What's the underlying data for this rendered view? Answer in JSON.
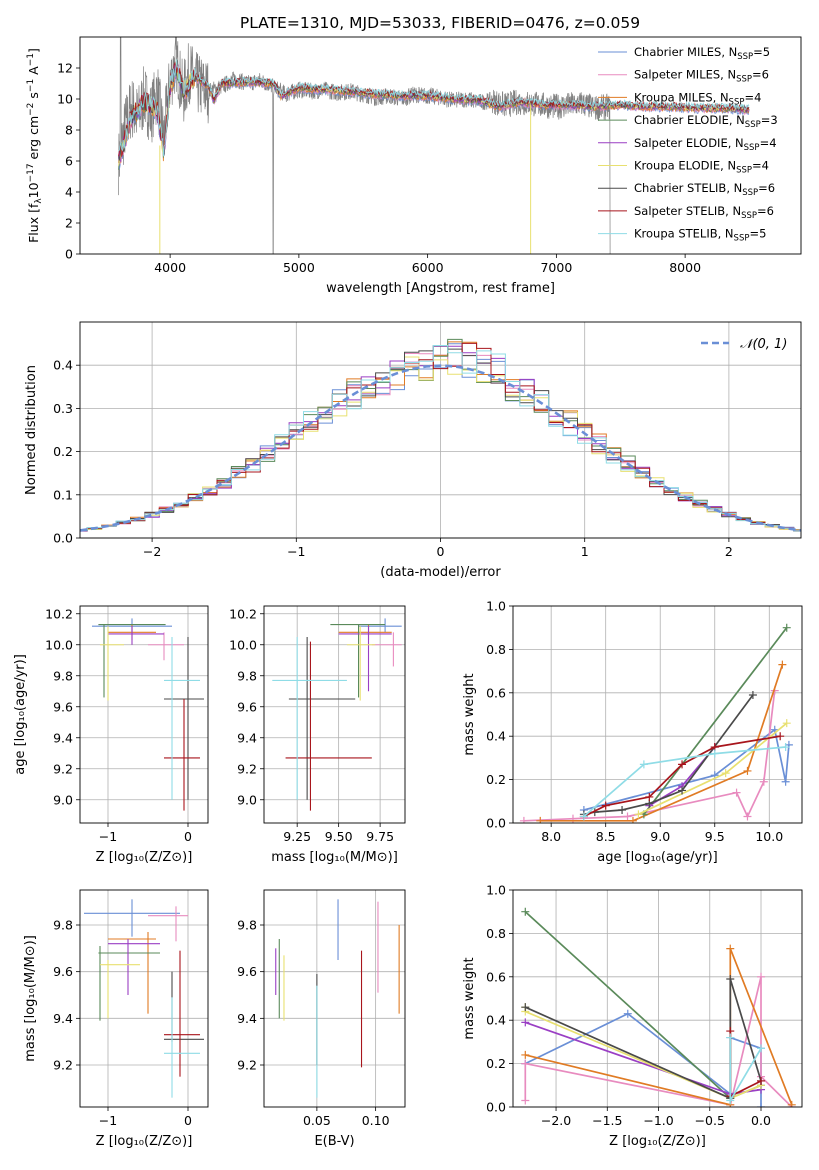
{
  "figure_title": "PLATE=1310, MJD=53033, FIBERID=0476, z=0.059",
  "colors": {
    "grid": "#b0b0b0",
    "data": "#808080",
    "series": [
      "#6a8fd6",
      "#e88bbf",
      "#e07b24",
      "#5a8a5a",
      "#9a3fc4",
      "#e8e070",
      "#4a4a4a",
      "#a8151c",
      "#8fdce6"
    ],
    "normal": "#6a8fd6"
  },
  "chart_data": [
    {
      "id": "spectrum",
      "type": "line",
      "xlabel": "wavelength [Angstrom, rest frame]",
      "ylabel": "Flux [f$_\\lambda$10$^{-17}$ erg cm$^{-2}$ s$^{-1}$ A$^{-1}$]",
      "xlim": [
        3300,
        8900
      ],
      "ylim": [
        0,
        14
      ],
      "xticks": [
        4000,
        5000,
        6000,
        7000,
        8000
      ],
      "yticks": [
        0,
        2,
        4,
        6,
        8,
        10,
        12
      ],
      "grid": false,
      "legend_position": "top-right",
      "legend": [
        {
          "main": "Chabrier MILES, N",
          "sub": "SSP",
          "tail": "=5"
        },
        {
          "main": "Salpeter MILES, N",
          "sub": "SSP",
          "tail": "=6"
        },
        {
          "main": "Kroupa MILES, N",
          "sub": "SSP",
          "tail": "=4"
        },
        {
          "main": "Chabrier ELODIE, N",
          "sub": "SSP",
          "tail": "=3"
        },
        {
          "main": "Salpeter ELODIE, N",
          "sub": "SSP",
          "tail": "=4"
        },
        {
          "main": "Kroupa ELODIE, N",
          "sub": "SSP",
          "tail": "=4"
        },
        {
          "main": "Chabrier STELIB, N",
          "sub": "SSP",
          "tail": "=6"
        },
        {
          "main": "Salpeter STELIB, N",
          "sub": "SSP",
          "tail": "=6"
        },
        {
          "main": "Kroupa STELIB, N",
          "sub": "SSP",
          "tail": "=5"
        }
      ],
      "data_x": [
        3600,
        3650,
        3700,
        3750,
        3800,
        3850,
        3900,
        3950,
        4000,
        4050,
        4100,
        4150,
        4200,
        4300,
        4400,
        4500,
        4600,
        4700,
        4800,
        4900,
        5000,
        5100,
        5200,
        5300,
        5400,
        5500,
        5600,
        5700,
        5800,
        5900,
        6000,
        6100,
        6200,
        6300,
        6400,
        6500,
        6600,
        6700,
        6800,
        6900,
        7000,
        7100,
        7200,
        7300,
        7400
      ],
      "data_y": [
        5.9,
        8.2,
        9.5,
        8.8,
        10.2,
        9.0,
        10.5,
        7.5,
        11.2,
        12.5,
        10.2,
        11.8,
        11.0,
        10.5,
        10.8,
        11.3,
        11.0,
        11.2,
        10.8,
        10.3,
        10.6,
        10.5,
        10.6,
        10.4,
        10.5,
        10.3,
        10.1,
        10.2,
        10.0,
        10.3,
        10.2,
        10.1,
        9.9,
        10.0,
        9.8,
        9.9,
        9.6,
        9.8,
        9.7,
        9.6,
        9.5,
        9.6,
        9.7,
        9.4,
        9.5
      ],
      "model_x": [
        3600,
        3700,
        3800,
        3900,
        3950,
        4000,
        4050,
        4100,
        4200,
        4300,
        4340,
        4400,
        4600,
        4800,
        4861,
        5000,
        5200,
        5400,
        5600,
        5800,
        6000,
        6200,
        6400,
        6563,
        6700,
        6900,
        7100,
        7300,
        7500,
        7700,
        7900,
        8100,
        8300,
        8500
      ],
      "model_y": [
        6.0,
        8.8,
        9.8,
        9.3,
        6.5,
        10.8,
        12.0,
        10.5,
        11.4,
        10.8,
        9.9,
        11.0,
        11.1,
        11.0,
        10.2,
        10.7,
        10.6,
        10.5,
        10.3,
        10.2,
        10.2,
        10.0,
        9.9,
        9.5,
        9.8,
        9.6,
        9.6,
        9.5,
        9.6,
        9.5,
        9.5,
        9.4,
        9.4,
        9.3
      ]
    },
    {
      "id": "residuals",
      "type": "histogram",
      "xlabel": "(data-model)/error",
      "ylabel": "Normed distribution",
      "xlim": [
        -2.5,
        2.5
      ],
      "ylim": [
        0,
        0.5
      ],
      "xticks": [
        -2,
        -1,
        0,
        1,
        2
      ],
      "xticklabels": [
        "−2",
        "−1",
        "0",
        "1",
        "2"
      ],
      "yticks": [
        0.0,
        0.1,
        0.2,
        0.3,
        0.4
      ],
      "yticklabels": [
        "0.0",
        "0.1",
        "0.2",
        "0.3",
        "0.4"
      ],
      "grid": true,
      "legend_position": "top-right",
      "legend_label": "𝒩(0, 1)",
      "bin_width": 0.1
    },
    {
      "id": "age-vs-Z",
      "type": "errorbar",
      "xlabel": "Z [log₁₀(Z/Z⊙)]",
      "ylabel": "age  [log₁₀(age/yr)]",
      "xlim": [
        -1.35,
        0.25
      ],
      "ylim": [
        8.85,
        10.25
      ],
      "xticks": [
        -1,
        0
      ],
      "xticklabels": [
        "−1",
        "0"
      ],
      "yticks": [
        9.0,
        9.2,
        9.4,
        9.6,
        9.8,
        10.0,
        10.2
      ],
      "yticklabels": [
        "9.0",
        "9.2",
        "9.4",
        "9.6",
        "9.8",
        "10.0",
        "10.2"
      ],
      "grid": true,
      "points": [
        {
          "x": -0.7,
          "y": 10.12,
          "xe": [
            -1.2,
            -0.2
          ],
          "ye": [
            10.08,
            10.17
          ]
        },
        {
          "x": -0.3,
          "y": 10.0,
          "xe": [
            -0.5,
            -0.05
          ],
          "ye": [
            9.9,
            10.08
          ]
        },
        {
          "x": -0.7,
          "y": 10.08,
          "xe": [
            -1.0,
            -0.4
          ],
          "ye": [
            10.03,
            10.13
          ]
        },
        {
          "x": -1.05,
          "y": 10.13,
          "xe": [
            -1.12,
            -0.28
          ],
          "ye": [
            9.66,
            10.13
          ]
        },
        {
          "x": -0.7,
          "y": 10.07,
          "xe": [
            -1.0,
            -0.3
          ],
          "ye": [
            10.0,
            10.12
          ]
        },
        {
          "x": -1.0,
          "y": 10.0,
          "xe": [
            -1.1,
            -0.8
          ],
          "ye": [
            9.64,
            10.12
          ]
        },
        {
          "x": 0.0,
          "y": 9.65,
          "xe": [
            -0.3,
            0.2
          ],
          "ye": [
            9.0,
            10.05
          ]
        },
        {
          "x": -0.05,
          "y": 9.27,
          "xe": [
            -0.3,
            0.15
          ],
          "ye": [
            8.93,
            9.65
          ]
        },
        {
          "x": -0.2,
          "y": 9.77,
          "xe": [
            -0.3,
            0.15
          ],
          "ye": [
            9.0,
            10.05
          ]
        }
      ]
    },
    {
      "id": "age-vs-mass",
      "type": "errorbar",
      "xlabel": "mass [log₁₀(M/M⊙)]",
      "ylabel": "",
      "xlim": [
        9.05,
        9.9
      ],
      "ylim": [
        8.85,
        10.25
      ],
      "xticks": [
        9.25,
        9.5,
        9.75
      ],
      "xticklabels": [
        "9.25",
        "9.50",
        "9.75"
      ],
      "yticks": [
        9.0,
        9.2,
        9.4,
        9.6,
        9.8,
        10.0,
        10.2
      ],
      "yticklabels": [
        "9.0",
        "9.2",
        "9.4",
        "9.6",
        "9.8",
        "10.0",
        "10.2"
      ],
      "grid": true,
      "points": [
        {
          "x": 9.78,
          "y": 10.12,
          "xe": [
            9.62,
            9.88
          ],
          "ye": [
            10.08,
            10.17
          ]
        },
        {
          "x": 9.83,
          "y": 10.0,
          "xe": [
            9.7,
            9.88
          ],
          "ye": [
            9.86,
            10.08
          ]
        },
        {
          "x": 9.68,
          "y": 10.08,
          "xe": [
            9.5,
            9.82
          ],
          "ye": [
            10.03,
            10.13
          ]
        },
        {
          "x": 9.62,
          "y": 10.13,
          "xe": [
            9.45,
            9.78
          ],
          "ye": [
            9.66,
            10.13
          ]
        },
        {
          "x": 9.68,
          "y": 10.07,
          "xe": [
            9.5,
            9.82
          ],
          "ye": [
            9.7,
            10.12
          ]
        },
        {
          "x": 9.63,
          "y": 10.0,
          "xe": [
            9.55,
            9.72
          ],
          "ye": [
            9.64,
            10.12
          ]
        },
        {
          "x": 9.31,
          "y": 9.65,
          "xe": [
            9.2,
            9.6
          ],
          "ye": [
            9.0,
            10.05
          ]
        },
        {
          "x": 9.33,
          "y": 9.27,
          "xe": [
            9.18,
            9.7
          ],
          "ye": [
            8.93,
            10.02
          ]
        },
        {
          "x": 9.25,
          "y": 9.77,
          "xe": [
            9.1,
            9.55
          ],
          "ye": [
            9.0,
            10.05
          ]
        }
      ]
    },
    {
      "id": "weight-vs-age",
      "type": "line",
      "xlabel": "age  [log₁₀(age/yr)]",
      "ylabel": "mass weight",
      "xlim": [
        7.65,
        10.3
      ],
      "ylim": [
        0,
        1
      ],
      "xticks": [
        8.0,
        8.5,
        9.0,
        9.5,
        10.0
      ],
      "xticklabels": [
        "8.0",
        "8.5",
        "9.0",
        "9.5",
        "10.0"
      ],
      "yticks": [
        0.0,
        0.2,
        0.4,
        0.6,
        0.8,
        1.0
      ],
      "yticklabels": [
        "0.0",
        "0.2",
        "0.4",
        "0.6",
        "0.8",
        "1.0"
      ],
      "grid": true,
      "series": [
        {
          "x": [
            8.3,
            9.5,
            10.05,
            10.15,
            10.18
          ],
          "y": [
            0.06,
            0.22,
            0.43,
            0.19,
            0.36
          ]
        },
        {
          "x": [
            7.75,
            8.2,
            8.7,
            9.7,
            9.8,
            9.95,
            10.05
          ],
          "y": [
            0.01,
            0.02,
            0.03,
            0.14,
            0.03,
            0.19,
            0.61
          ]
        },
        {
          "x": [
            7.9,
            8.75,
            9.8,
            10.12
          ],
          "y": [
            0.01,
            0.01,
            0.24,
            0.73
          ]
        },
        {
          "x": [
            8.85,
            10.16
          ],
          "y": [
            0.04,
            0.9
          ]
        },
        {
          "x": [
            8.9,
            9.2,
            9.5
          ],
          "y": [
            0.08,
            0.17,
            0.35
          ]
        },
        {
          "x": [
            8.8,
            9.6,
            10.16
          ],
          "y": [
            0.04,
            0.23,
            0.46
          ]
        },
        {
          "x": [
            8.3,
            8.4,
            8.65,
            8.9,
            9.2,
            9.85
          ],
          "y": [
            0.04,
            0.05,
            0.06,
            0.09,
            0.15,
            0.59
          ]
        },
        {
          "x": [
            8.3,
            8.5,
            8.9,
            9.2,
            9.5,
            10.1
          ],
          "y": [
            0.03,
            0.08,
            0.12,
            0.27,
            0.35,
            0.4
          ]
        },
        {
          "x": [
            8.3,
            8.85,
            9.5,
            10.15
          ],
          "y": [
            0.03,
            0.27,
            0.32,
            0.35
          ]
        }
      ]
    },
    {
      "id": "mass-vs-Z",
      "type": "errorbar",
      "xlabel": "Z [log₁₀(Z/Z⊙)]",
      "ylabel": "mass [log₁₀(M/M⊙)]",
      "xlim": [
        -1.35,
        0.25
      ],
      "ylim": [
        9.02,
        9.95
      ],
      "xticks": [
        -1,
        0
      ],
      "xticklabels": [
        "−1",
        "0"
      ],
      "yticks": [
        9.2,
        9.4,
        9.6,
        9.8
      ],
      "yticklabels": [
        "9.2",
        "9.4",
        "9.6",
        "9.8"
      ],
      "grid": true,
      "points": [
        {
          "x": -0.7,
          "y": 9.85,
          "xe": [
            -1.3,
            -0.1
          ],
          "ye": [
            9.75,
            9.91
          ]
        },
        {
          "x": -0.15,
          "y": 9.84,
          "xe": [
            -0.5,
            0.0
          ],
          "ye": [
            9.73,
            9.88
          ]
        },
        {
          "x": -0.5,
          "y": 9.74,
          "xe": [
            -1.0,
            -0.4
          ],
          "ye": [
            9.42,
            9.77
          ]
        },
        {
          "x": -1.1,
          "y": 9.68,
          "xe": [
            -1.12,
            -0.35
          ],
          "ye": [
            9.39,
            9.71
          ]
        },
        {
          "x": -0.75,
          "y": 9.72,
          "xe": [
            -1.0,
            -0.35
          ],
          "ye": [
            9.5,
            9.74
          ]
        },
        {
          "x": -1.0,
          "y": 9.63,
          "xe": [
            -1.1,
            -0.6
          ],
          "ye": [
            9.4,
            9.65
          ]
        },
        {
          "x": -0.2,
          "y": 9.31,
          "xe": [
            -0.3,
            0.2
          ],
          "ye": [
            9.3,
            9.6
          ]
        },
        {
          "x": -0.1,
          "y": 9.33,
          "xe": [
            -0.3,
            0.15
          ],
          "ye": [
            9.15,
            9.69
          ]
        },
        {
          "x": -0.2,
          "y": 9.25,
          "xe": [
            -0.3,
            0.15
          ],
          "ye": [
            9.06,
            9.49
          ]
        }
      ]
    },
    {
      "id": "mass-vs-EBV",
      "type": "errorbar",
      "xlabel": "E(B-V)",
      "ylabel": "",
      "xlim": [
        0.005,
        0.125
      ],
      "ylim": [
        9.02,
        9.95
      ],
      "xticks": [
        0.05,
        0.1
      ],
      "xticklabels": [
        "0.05",
        "0.10"
      ],
      "yticks": [
        9.2,
        9.4,
        9.6,
        9.8
      ],
      "yticklabels": [
        "9.2",
        "9.4",
        "9.6",
        "9.8"
      ],
      "grid": true,
      "points": [
        {
          "x": 0.068,
          "y": 9.78,
          "xe": [
            0.068,
            0.068
          ],
          "ye": [
            9.65,
            9.91
          ]
        },
        {
          "x": 0.102,
          "y": 9.72,
          "xe": [
            0.102,
            0.102
          ],
          "ye": [
            9.51,
            9.9
          ]
        },
        {
          "x": 0.12,
          "y": 9.6,
          "xe": [
            0.12,
            0.12
          ],
          "ye": [
            9.42,
            9.8
          ]
        },
        {
          "x": 0.018,
          "y": 9.6,
          "xe": [
            0.018,
            0.018
          ],
          "ye": [
            9.4,
            9.74
          ]
        },
        {
          "x": 0.015,
          "y": 9.6,
          "xe": [
            0.015,
            0.015
          ],
          "ye": [
            9.5,
            9.7
          ]
        },
        {
          "x": 0.022,
          "y": 9.55,
          "xe": [
            0.022,
            0.022
          ],
          "ye": [
            9.39,
            9.67
          ]
        },
        {
          "x": 0.05,
          "y": 9.4,
          "xe": [
            0.05,
            0.05
          ],
          "ye": [
            9.2,
            9.59
          ]
        },
        {
          "x": 0.088,
          "y": 9.45,
          "xe": [
            0.088,
            0.088
          ],
          "ye": [
            9.19,
            9.69
          ]
        },
        {
          "x": 0.05,
          "y": 9.3,
          "xe": [
            0.05,
            0.05
          ],
          "ye": [
            9.06,
            9.54
          ]
        }
      ]
    },
    {
      "id": "weight-vs-Z",
      "type": "line",
      "xlabel": "Z [log₁₀(Z/Z⊙)]",
      "ylabel": "mass weight",
      "xlim": [
        -2.42,
        0.4
      ],
      "ylim": [
        0,
        1
      ],
      "xticks": [
        -2.0,
        -1.5,
        -1.0,
        -0.5,
        0.0
      ],
      "xticklabels": [
        "−2.0",
        "−1.5",
        "−1.0",
        "−0.5",
        "0.0"
      ],
      "yticks": [
        0.0,
        0.2,
        0.4,
        0.6,
        0.8,
        1.0
      ],
      "yticklabels": [
        "0.0",
        "0.2",
        "0.4",
        "0.6",
        "0.8",
        "1.0"
      ],
      "grid": true,
      "series": [
        {
          "x": [
            -2.3,
            -1.3,
            -0.3,
            -0.3,
            0.0,
            0.0
          ],
          "y": [
            0.2,
            0.43,
            0.06,
            0.32,
            0.27,
            0.0
          ]
        },
        {
          "x": [
            -2.3,
            -2.3,
            -0.3,
            0.0,
            0.0,
            0.3
          ],
          "y": [
            0.03,
            0.2,
            0.01,
            0.6,
            0.14,
            0.0
          ]
        },
        {
          "x": [
            -2.3,
            -0.3,
            -0.3,
            0.3
          ],
          "y": [
            0.24,
            0.01,
            0.73,
            0.01
          ]
        },
        {
          "x": [
            -2.3,
            -0.3,
            0.0
          ],
          "y": [
            0.9,
            0.04,
            0.1
          ]
        },
        {
          "x": [
            -2.3,
            -0.3,
            0.0
          ],
          "y": [
            0.39,
            0.06,
            0.08
          ]
        },
        {
          "x": [
            -2.3,
            -2.3,
            -0.3,
            0.0
          ],
          "y": [
            0.46,
            0.44,
            0.04,
            0.1
          ]
        },
        {
          "x": [
            -2.3,
            -0.3,
            -0.3,
            0.0
          ],
          "y": [
            0.46,
            0.04,
            0.59,
            0.12
          ]
        },
        {
          "x": [
            -0.3,
            -0.3,
            0.0
          ],
          "y": [
            0.35,
            0.05,
            0.12
          ]
        },
        {
          "x": [
            -0.3,
            -0.3,
            0.0
          ],
          "y": [
            0.32,
            0.03,
            0.27
          ]
        }
      ]
    }
  ]
}
